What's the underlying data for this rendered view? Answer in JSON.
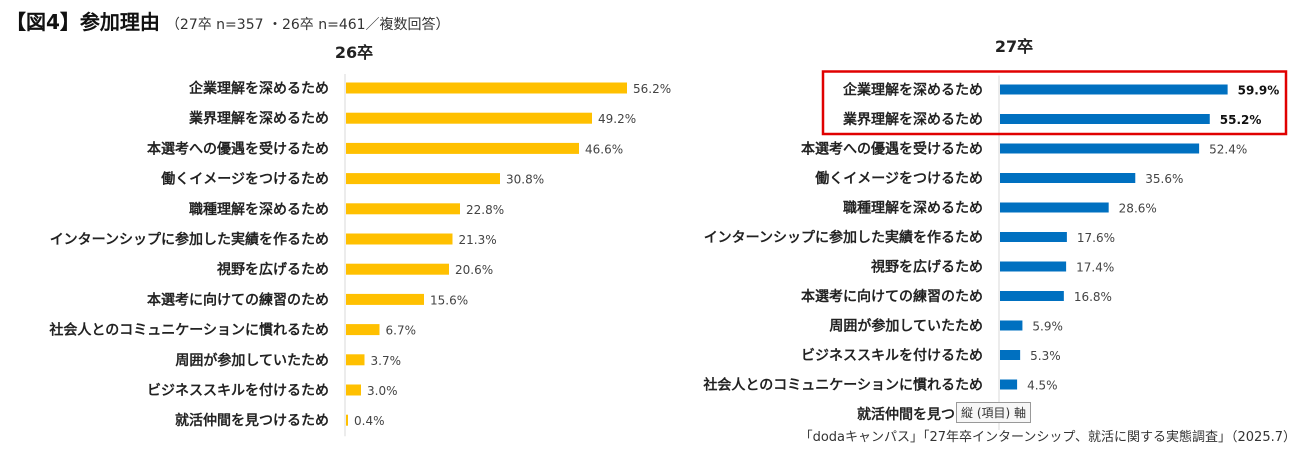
{
  "header": {
    "title": "【図4】参加理由",
    "subtitle": "（27卒 n=357 ・26卒 n=461／複数回答）"
  },
  "source": "「dodaキャンパス」「27年卒インターンシップ、就活に関する実態調査」（2025.7）",
  "tooltip": "縦 (項目) 軸",
  "colors": {
    "chart_26": "#FFC000",
    "chart_27": "#0070C0",
    "highlight": "#E00000"
  },
  "chart_data": [
    {
      "type": "bar",
      "orientation": "horizontal",
      "title": "26卒",
      "value_suffix": "%",
      "xlim": [
        0,
        100
      ],
      "grid": false,
      "categories": [
        "企業理解を深めるため",
        "業界理解を深めるため",
        "本選考への優遇を受けるため",
        "働くイメージをつけるため",
        "職種理解を深めるため",
        "インターンシップに参加した実績を作るため",
        "視野を広げるため",
        "本選考に向けての練習のため",
        "社会人とのコミュニケーションに慣れるため",
        "周囲が参加していたため",
        "ビジネススキルを付けるため",
        "就活仲間を見つけるため"
      ],
      "values": [
        56.2,
        49.2,
        46.6,
        30.8,
        22.8,
        21.3,
        20.6,
        15.6,
        6.7,
        3.7,
        3.0,
        0.4
      ],
      "labels": [
        "56.2%",
        "49.2%",
        "46.6%",
        "30.8%",
        "22.8%",
        "21.3%",
        "20.6%",
        "15.6%",
        "6.7%",
        "3.7%",
        "3.0%",
        "0.4%"
      ]
    },
    {
      "type": "bar",
      "orientation": "horizontal",
      "title": "27卒",
      "value_suffix": "%",
      "xlim": [
        0,
        100
      ],
      "grid": false,
      "highlighted": [
        0,
        1
      ],
      "categories": [
        "企業理解を深めるため",
        "業界理解を深めるため",
        "本選考への優遇を受けるため",
        "働くイメージをつけるため",
        "職種理解を深めるため",
        "インターンシップに参加した実績を作るため",
        "視野を広げるため",
        "本選考に向けての練習のため",
        "周囲が参加していたため",
        "ビジネススキルを付けるため",
        "社会人とのコミュニケーションに慣れるため",
        "就活仲間を見つける"
      ],
      "values": [
        59.9,
        55.2,
        52.4,
        35.6,
        28.6,
        17.6,
        17.4,
        16.8,
        5.9,
        5.3,
        4.5,
        null
      ],
      "labels": [
        "59.9%",
        "55.2%",
        "52.4%",
        "35.6%",
        "28.6%",
        "17.6%",
        "17.4%",
        "16.8%",
        "5.9%",
        "5.3%",
        "4.5%",
        ""
      ]
    }
  ]
}
